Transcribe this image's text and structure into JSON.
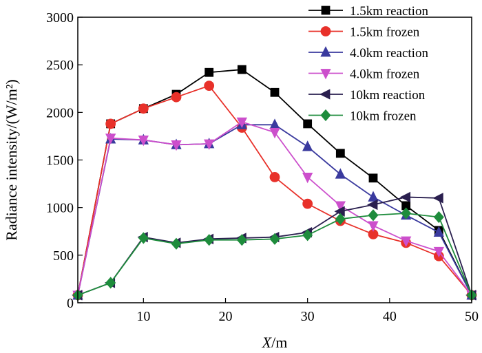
{
  "chart_data": {
    "type": "line",
    "xlabel_italic": "X",
    "xlabel_unit": "/m",
    "ylabel": "Radiance intensity/(W/m²)",
    "xlim": [
      2,
      50
    ],
    "ylim": [
      0,
      3000
    ],
    "xticks": [
      10,
      20,
      30,
      40,
      50
    ],
    "yticks": [
      0,
      500,
      1000,
      1500,
      2000,
      2500,
      3000
    ],
    "legend_position": "top-right",
    "series": [
      {
        "name": "1.5km reaction",
        "color": "#000000",
        "marker": "square",
        "points": [
          [
            2,
            80
          ],
          [
            6,
            1880
          ],
          [
            10,
            2040
          ],
          [
            14,
            2190
          ],
          [
            18,
            2420
          ],
          [
            22,
            2450
          ],
          [
            26,
            2210
          ],
          [
            30,
            1880
          ],
          [
            34,
            1570
          ],
          [
            38,
            1310
          ],
          [
            42,
            1020
          ],
          [
            46,
            760
          ],
          [
            50,
            80
          ]
        ]
      },
      {
        "name": "1.5km frozen",
        "color": "#e8312a",
        "marker": "circle",
        "points": [
          [
            2,
            80
          ],
          [
            6,
            1880
          ],
          [
            10,
            2040
          ],
          [
            14,
            2160
          ],
          [
            18,
            2280
          ],
          [
            22,
            1840
          ],
          [
            26,
            1320
          ],
          [
            30,
            1040
          ],
          [
            34,
            860
          ],
          [
            38,
            720
          ],
          [
            42,
            630
          ],
          [
            46,
            490
          ],
          [
            50,
            80
          ]
        ]
      },
      {
        "name": "4.0km reaction",
        "color": "#3a3a9e",
        "marker": "triangle-up",
        "points": [
          [
            2,
            80
          ],
          [
            6,
            1720
          ],
          [
            10,
            1710
          ],
          [
            14,
            1660
          ],
          [
            18,
            1670
          ],
          [
            22,
            1870
          ],
          [
            26,
            1870
          ],
          [
            30,
            1640
          ],
          [
            34,
            1350
          ],
          [
            38,
            1110
          ],
          [
            42,
            920
          ],
          [
            46,
            740
          ],
          [
            50,
            80
          ]
        ]
      },
      {
        "name": "4.0km frozen",
        "color": "#cc4fcc",
        "marker": "triangle-down",
        "points": [
          [
            2,
            80
          ],
          [
            6,
            1730
          ],
          [
            10,
            1710
          ],
          [
            14,
            1660
          ],
          [
            18,
            1670
          ],
          [
            22,
            1900
          ],
          [
            26,
            1790
          ],
          [
            30,
            1320
          ],
          [
            34,
            1020
          ],
          [
            38,
            810
          ],
          [
            42,
            650
          ],
          [
            46,
            540
          ],
          [
            50,
            80
          ]
        ]
      },
      {
        "name": "10km reaction",
        "color": "#2a1f4f",
        "marker": "triangle-left",
        "points": [
          [
            2,
            80
          ],
          [
            6,
            210
          ],
          [
            10,
            690
          ],
          [
            14,
            630
          ],
          [
            18,
            670
          ],
          [
            22,
            680
          ],
          [
            26,
            690
          ],
          [
            30,
            740
          ],
          [
            34,
            960
          ],
          [
            38,
            1030
          ],
          [
            42,
            1110
          ],
          [
            46,
            1100
          ],
          [
            50,
            80
          ]
        ]
      },
      {
        "name": "10km frozen",
        "color": "#1e8c3c",
        "marker": "diamond",
        "points": [
          [
            2,
            80
          ],
          [
            6,
            210
          ],
          [
            10,
            680
          ],
          [
            14,
            620
          ],
          [
            18,
            660
          ],
          [
            22,
            660
          ],
          [
            26,
            670
          ],
          [
            30,
            710
          ],
          [
            34,
            880
          ],
          [
            38,
            920
          ],
          [
            42,
            940
          ],
          [
            46,
            900
          ],
          [
            50,
            80
          ]
        ]
      }
    ]
  }
}
